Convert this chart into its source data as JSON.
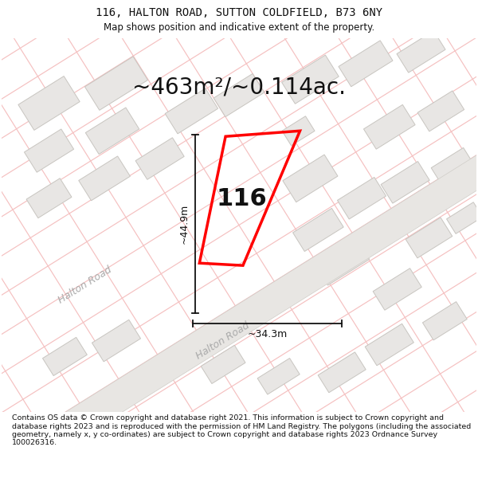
{
  "title_line1": "116, HALTON ROAD, SUTTON COLDFIELD, B73 6NY",
  "title_line2": "Map shows position and indicative extent of the property.",
  "area_label": "~463m²/~0.114ac.",
  "dim_vertical": "~44.9m",
  "dim_horizontal": "~34.3m",
  "house_number": "116",
  "road_label_left": "Halton Road",
  "road_label_right": "Halton Road",
  "footer": "Contains OS data © Crown copyright and database right 2021. This information is subject to Crown copyright and database rights 2023 and is reproduced with the permission of HM Land Registry. The polygons (including the associated geometry, namely x, y co-ordinates) are subject to Crown copyright and database rights 2023 Ordnance Survey 100026316.",
  "map_bg": "#ffffff",
  "road_fill": "#e8e6e3",
  "road_edge": "#d0cdc8",
  "building_fill": "#e8e6e4",
  "building_edge": "#c8c5c0",
  "plot_color": "#ff0000",
  "grid_color": "#f5c0c0",
  "dim_color": "#111111",
  "title_color": "#111111",
  "area_color": "#111111",
  "road_text_color": "#aaaaaa",
  "title_font": "DejaVu Sans Mono",
  "subtitle_font": "DejaVu Sans",
  "footer_fontsize": 6.8,
  "title_fontsize": 10,
  "subtitle_fontsize": 8.5,
  "area_fontsize": 20,
  "house_fontsize": 22,
  "dim_fontsize": 9,
  "road_fontsize": 9
}
